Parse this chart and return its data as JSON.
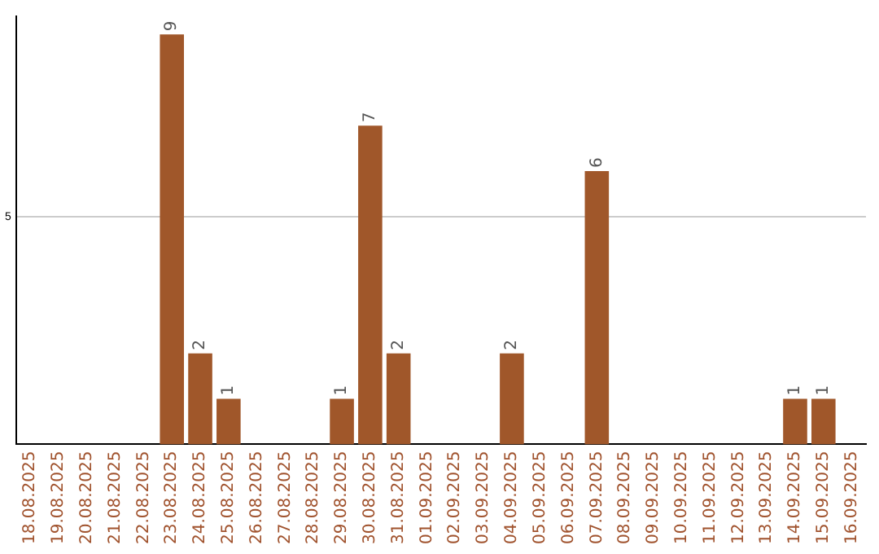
{
  "chart_data": {
    "type": "bar",
    "categories": [
      "18.08.2025",
      "19.08.2025",
      "20.08.2025",
      "21.08.2025",
      "22.08.2025",
      "23.08.2025",
      "24.08.2025",
      "25.08.2025",
      "26.08.2025",
      "27.08.2025",
      "28.08.2025",
      "29.08.2025",
      "30.08.2025",
      "31.08.2025",
      "01.09.2025",
      "02.09.2025",
      "03.09.2025",
      "04.09.2025",
      "05.09.2025",
      "06.09.2025",
      "07.09.2025",
      "08.09.2025",
      "09.09.2025",
      "10.09.2025",
      "11.09.2025",
      "12.09.2025",
      "13.09.2025",
      "14.09.2025",
      "15.09.2025",
      "16.09.2025"
    ],
    "values": [
      0,
      0,
      0,
      0,
      0,
      9,
      2,
      1,
      0,
      0,
      0,
      1,
      7,
      2,
      0,
      0,
      0,
      2,
      0,
      0,
      6,
      0,
      0,
      0,
      0,
      0,
      0,
      1,
      1,
      0
    ],
    "value_labels": [
      null,
      null,
      null,
      null,
      null,
      "9",
      "2",
      "1",
      null,
      null,
      null,
      "1",
      "7",
      "2",
      null,
      null,
      null,
      "2",
      null,
      null,
      "6",
      null,
      null,
      null,
      null,
      null,
      null,
      "1",
      "1",
      null
    ],
    "color": "#a0572a",
    "ylim": [
      0,
      9.4
    ],
    "yticks": [
      5
    ],
    "grid": "y",
    "legend": false
  }
}
